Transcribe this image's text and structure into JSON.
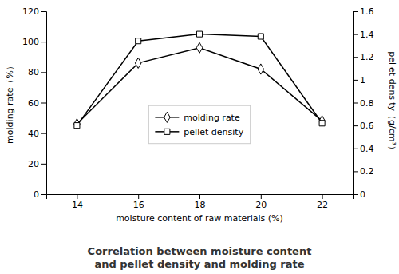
{
  "chart_data": {
    "type": "line",
    "title": "Correlation between moisture content\nand pellet density and molding rate",
    "xlabel": "moisture content of raw materials (%)",
    "ylabel": "molding rate（%）",
    "y2label": "pellet density（g/cm³）",
    "x": [
      14,
      16,
      18,
      20,
      22
    ],
    "xlim": [
      13,
      23
    ],
    "xticks": [
      14,
      16,
      18,
      20,
      22
    ],
    "ylim": [
      0,
      120
    ],
    "yticks": [
      0,
      20,
      40,
      60,
      80,
      100,
      120
    ],
    "y2lim": [
      0,
      1.6
    ],
    "y2ticks": [
      0,
      0.2,
      0.4,
      0.6,
      0.8,
      1,
      1.2,
      1.4,
      1.6
    ],
    "legend": "center",
    "series": [
      {
        "name": "molding rate",
        "color": "black",
        "marker": "diamond",
        "values": [
          46,
          86,
          96,
          82,
          48
        ]
      },
      {
        "name": "pellet density",
        "color": "black",
        "marker": "square",
        "axis": "y2",
        "values": [
          0.6,
          1.34,
          1.4,
          1.38,
          0.62
        ]
      }
    ]
  }
}
